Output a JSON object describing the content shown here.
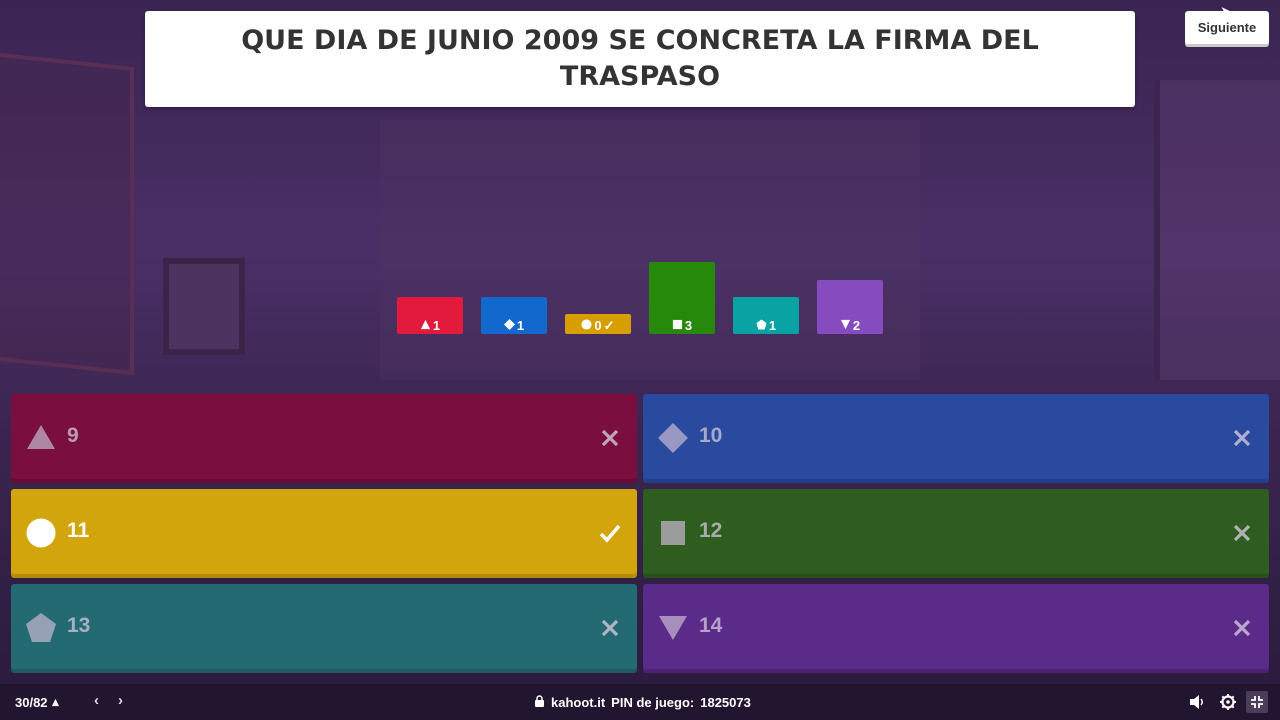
{
  "question": {
    "text": "QUE DIA DE JUNIO 2009 SE CONCRETA LA FIRMA DEL TRASPASO"
  },
  "header": {
    "next_label": "Siguiente"
  },
  "results": [
    {
      "shape": "triangle-icon",
      "count": "1",
      "color": "#e21b3c",
      "correct": false
    },
    {
      "shape": "diamond-icon",
      "count": "1",
      "color": "#1368ce",
      "correct": false
    },
    {
      "shape": "circle-icon",
      "count": "0",
      "color": "#d89e00",
      "correct": true,
      "check": "✓"
    },
    {
      "shape": "square-icon",
      "count": "3",
      "color": "#26890c",
      "correct": false
    },
    {
      "shape": "pentagon-icon",
      "count": "1",
      "color": "#0aa3a3",
      "correct": false
    },
    {
      "shape": "down-triangle-icon",
      "count": "2",
      "color": "#864cbf",
      "correct": false
    }
  ],
  "answers": [
    {
      "label": "9",
      "shape": "triangle-icon",
      "color": "#7a0f3f",
      "correct": false,
      "mark": "close-icon"
    },
    {
      "label": "10",
      "shape": "diamond-icon",
      "color": "#2a4aa0",
      "correct": false,
      "mark": "close-icon"
    },
    {
      "label": "11",
      "shape": "circle-icon",
      "color": "#d3a50c",
      "correct": true,
      "mark": "check-icon"
    },
    {
      "label": "12",
      "shape": "square-icon",
      "color": "#2f5d1f",
      "correct": false,
      "mark": "close-icon"
    },
    {
      "label": "13",
      "shape": "pentagon-icon",
      "color": "#246a73",
      "correct": false,
      "mark": "close-icon"
    },
    {
      "label": "14",
      "shape": "down-triangle-icon",
      "color": "#5b2b8a",
      "correct": false,
      "mark": "close-icon"
    }
  ],
  "footer": {
    "counter": "30/82",
    "site": "kahoot.it",
    "pin_label": "PIN de juego:",
    "pin_value": "1825073"
  }
}
